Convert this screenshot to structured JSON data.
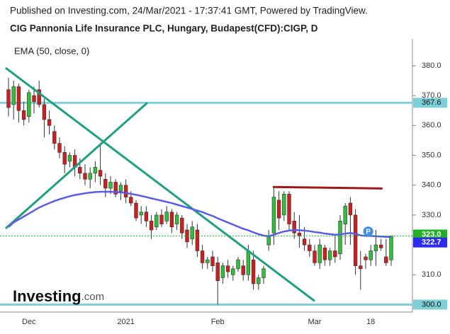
{
  "header": "Published on Investing.com, 24/Mar/2021 - 17:37:41 GMT, Powered by TradingView.",
  "chart_data": {
    "type": "candlestick",
    "title": "CIG Pannonia Life Insurance PLC, Hungary, Budapest(CFD):CIGP, D",
    "indicator": {
      "name": "EMA (50, close, 0)",
      "color": "#5b5be6",
      "values": [
        326,
        327.5,
        328.5,
        329.5,
        330.5,
        331.5,
        332.5,
        333.3,
        334,
        334.7,
        335.3,
        335.8,
        336.3,
        336.7,
        337,
        337.3,
        337.5,
        337.7,
        337.8,
        337.8,
        337.8,
        337.7,
        337.6,
        337.4,
        337.1,
        336.8,
        336.4,
        336,
        335.6,
        335.2,
        334.8,
        334.4,
        334,
        333.5,
        333,
        332.5,
        332,
        331.5,
        331,
        330.3,
        329.7,
        328.9,
        328.2,
        327.5,
        326.8,
        326.1,
        325.4,
        324.9,
        324.2,
        323.6,
        323.1,
        322.9,
        323.4,
        324,
        324.5,
        324.8,
        325,
        324.9,
        324.8,
        324.6,
        324.3,
        324.1,
        323.8,
        323.6,
        323.4,
        323.5,
        323.8,
        324,
        323.7,
        323.2,
        323,
        323,
        322.9,
        322.8,
        322.7,
        322.7
      ]
    },
    "categories": [
      null,
      null,
      null,
      null,
      "Dec",
      null,
      null,
      null,
      null,
      null,
      null,
      null,
      null,
      null,
      null,
      null,
      null,
      null,
      null,
      null,
      null,
      null,
      null,
      "2021",
      null,
      null,
      null,
      null,
      null,
      null,
      null,
      null,
      null,
      null,
      null,
      null,
      null,
      null,
      null,
      null,
      null,
      "Feb",
      null,
      null,
      null,
      null,
      null,
      null,
      null,
      null,
      null,
      null,
      null,
      null,
      null,
      null,
      null,
      null,
      null,
      null,
      "Mar",
      null,
      null,
      null,
      null,
      null,
      null,
      null,
      null,
      null,
      null,
      "18",
      null,
      null,
      null,
      null
    ],
    "ohlc": [
      [
        372,
        376,
        363,
        366
      ],
      [
        367,
        375,
        362,
        373
      ],
      [
        373,
        374,
        361,
        365
      ],
      [
        365,
        368,
        360,
        362
      ],
      [
        363,
        372,
        361,
        371
      ],
      [
        370,
        373,
        364,
        368
      ],
      [
        372,
        375,
        366,
        367
      ],
      [
        367,
        369,
        356,
        362
      ],
      [
        362,
        365,
        357,
        360
      ],
      [
        358,
        360,
        352,
        354
      ],
      [
        354,
        356,
        349,
        351
      ],
      [
        351,
        353,
        344,
        347
      ],
      [
        348,
        351,
        346,
        350
      ],
      [
        350,
        352,
        343,
        346
      ],
      [
        346,
        349,
        342,
        344
      ],
      [
        344,
        347,
        340,
        342
      ],
      [
        342,
        346,
        339,
        344
      ],
      [
        344,
        348,
        341,
        346
      ],
      [
        345,
        354,
        340,
        343
      ],
      [
        342,
        344,
        336,
        339
      ],
      [
        339,
        343,
        337,
        341
      ],
      [
        341,
        342,
        336,
        337
      ],
      [
        338,
        341,
        335,
        340
      ],
      [
        340,
        342,
        334,
        336
      ],
      [
        336,
        338,
        333,
        334
      ],
      [
        334,
        335,
        328,
        329
      ],
      [
        330,
        333,
        327,
        331
      ],
      [
        331,
        333,
        326,
        328
      ],
      [
        328,
        330,
        322,
        325
      ],
      [
        326,
        331,
        325,
        330
      ],
      [
        330,
        332,
        326,
        327
      ],
      [
        328,
        333,
        327,
        331
      ],
      [
        331,
        332,
        324,
        326
      ],
      [
        327,
        331,
        325,
        330
      ],
      [
        329,
        330,
        322,
        324
      ],
      [
        325,
        327,
        319,
        321
      ],
      [
        322,
        328,
        320,
        326
      ],
      [
        325,
        327,
        316,
        318
      ],
      [
        318,
        320,
        312,
        314
      ],
      [
        314,
        316,
        312,
        315
      ],
      [
        316,
        318,
        311,
        313
      ],
      [
        314,
        316,
        300,
        308
      ],
      [
        309,
        314,
        307,
        313
      ],
      [
        313,
        315,
        309,
        311
      ],
      [
        310,
        313,
        308,
        312
      ],
      [
        312,
        316,
        311,
        315
      ],
      [
        313,
        315,
        308,
        310
      ],
      [
        310,
        320,
        308,
        318
      ],
      [
        315,
        318,
        305,
        307
      ],
      [
        307,
        310,
        305,
        309
      ],
      [
        309,
        313,
        307,
        312
      ],
      [
        320,
        325,
        318,
        323
      ],
      [
        324,
        339,
        320,
        336
      ],
      [
        335,
        338,
        325,
        329
      ],
      [
        330,
        338,
        328,
        337
      ],
      [
        337,
        338,
        325,
        327
      ],
      [
        328,
        331,
        322,
        324
      ],
      [
        324,
        330,
        319,
        323
      ],
      [
        322,
        326,
        318,
        320
      ],
      [
        320,
        322,
        316,
        318
      ],
      [
        318,
        320,
        313,
        314
      ],
      [
        314,
        322,
        312,
        320
      ],
      [
        319,
        320,
        313,
        315
      ],
      [
        315,
        319,
        313,
        318
      ],
      [
        318,
        323,
        314,
        316
      ],
      [
        317,
        330,
        315,
        328
      ],
      [
        327,
        334,
        320,
        333
      ],
      [
        334,
        336,
        320,
        330
      ],
      [
        330,
        332,
        310,
        313
      ],
      [
        313,
        318,
        305,
        312
      ],
      [
        316,
        317,
        312,
        315
      ],
      [
        315,
        320,
        313,
        318
      ],
      [
        318,
        325,
        313,
        320
      ],
      [
        320,
        322,
        318,
        319
      ],
      [
        316,
        322,
        313,
        314
      ],
      [
        315,
        323,
        313,
        323
      ]
    ],
    "up_color": "#2fbf3a",
    "down_color": "#cc1f1f",
    "ylim": [
      297.5,
      389
    ],
    "yticks": [
      310,
      320,
      330,
      340,
      350,
      360,
      370,
      380
    ],
    "ytick_labels": [
      "310.0",
      "320.0",
      "330.0",
      "340.0",
      "350.0",
      "360.0",
      "370.0",
      "380.0"
    ],
    "hlines": [
      {
        "value": 367.6,
        "label": "367.6",
        "color": "#7fcfd8"
      },
      {
        "value": 300.0,
        "label": "300.0",
        "color": "#7fcfd8"
      }
    ],
    "price_tags": [
      {
        "value": 323.0,
        "label": "323.0",
        "color": "#22b02a"
      },
      {
        "value": 322.7,
        "label": "322.7",
        "color": "#2c2cf0"
      }
    ],
    "trendlines": [
      {
        "x": [
          -0.56,
          60
        ],
        "y": [
          379.3,
          301.2
        ],
        "color": "#1f9f7f"
      },
      {
        "x": [
          -0.56,
          27.2
        ],
        "y": [
          325.5,
          367.6
        ],
        "color": "#1f9f7f"
      },
      {
        "x": [
          51.8,
          73.3
        ],
        "y": [
          339.4,
          338.9
        ],
        "color": "#a01818"
      }
    ],
    "marker": {
      "label": "P",
      "x": 70.5,
      "y": 324.5
    },
    "logo": "Investing",
    "logo_suffix": ".com"
  }
}
